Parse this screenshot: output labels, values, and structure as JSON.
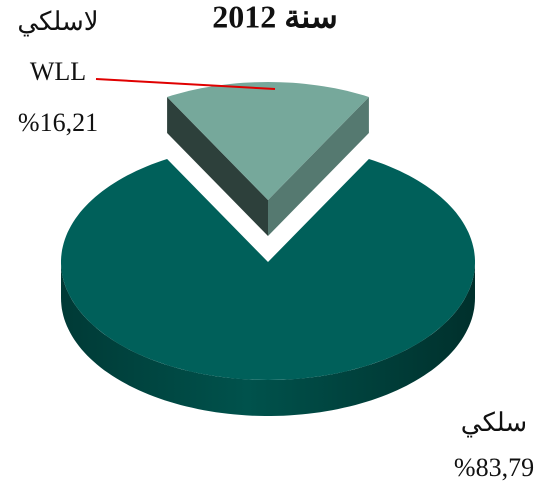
{
  "chart_data": {
    "type": "pie",
    "title": "سنة 2012",
    "categories": [
      [
        "لاسلكي",
        "WLL"
      ],
      [
        "سلكي"
      ]
    ],
    "values": [
      16.21,
      83.79
    ],
    "value_labels": [
      "%16,21",
      "%83,79"
    ],
    "colors": [
      "#76a89b",
      "#00605a"
    ]
  }
}
